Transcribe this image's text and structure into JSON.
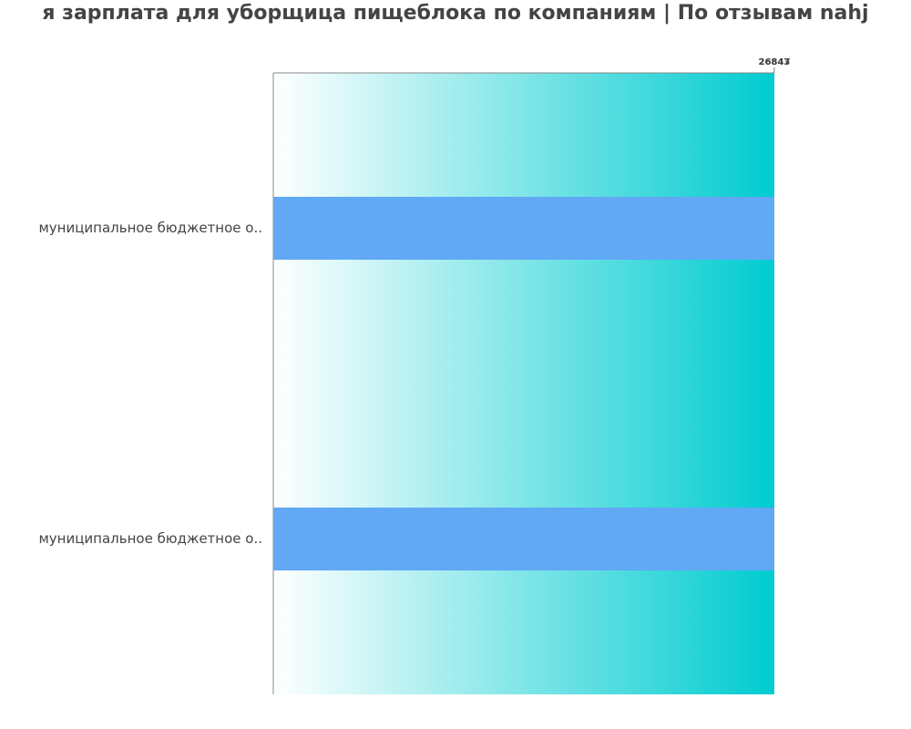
{
  "chart_data": {
    "type": "bar",
    "orientation": "horizontal",
    "title": "я зарплата для уборщица пищеблока по компаниям  | По отзывам nahj",
    "categories": [
      "муниципальное бюджетное о..",
      "муниципальное бюджетное о.."
    ],
    "values": [
      26847,
      26843
    ],
    "color": "#61a8f5",
    "xlim": [
      0,
      26847
    ],
    "xticks": [
      26843,
      26847
    ]
  }
}
